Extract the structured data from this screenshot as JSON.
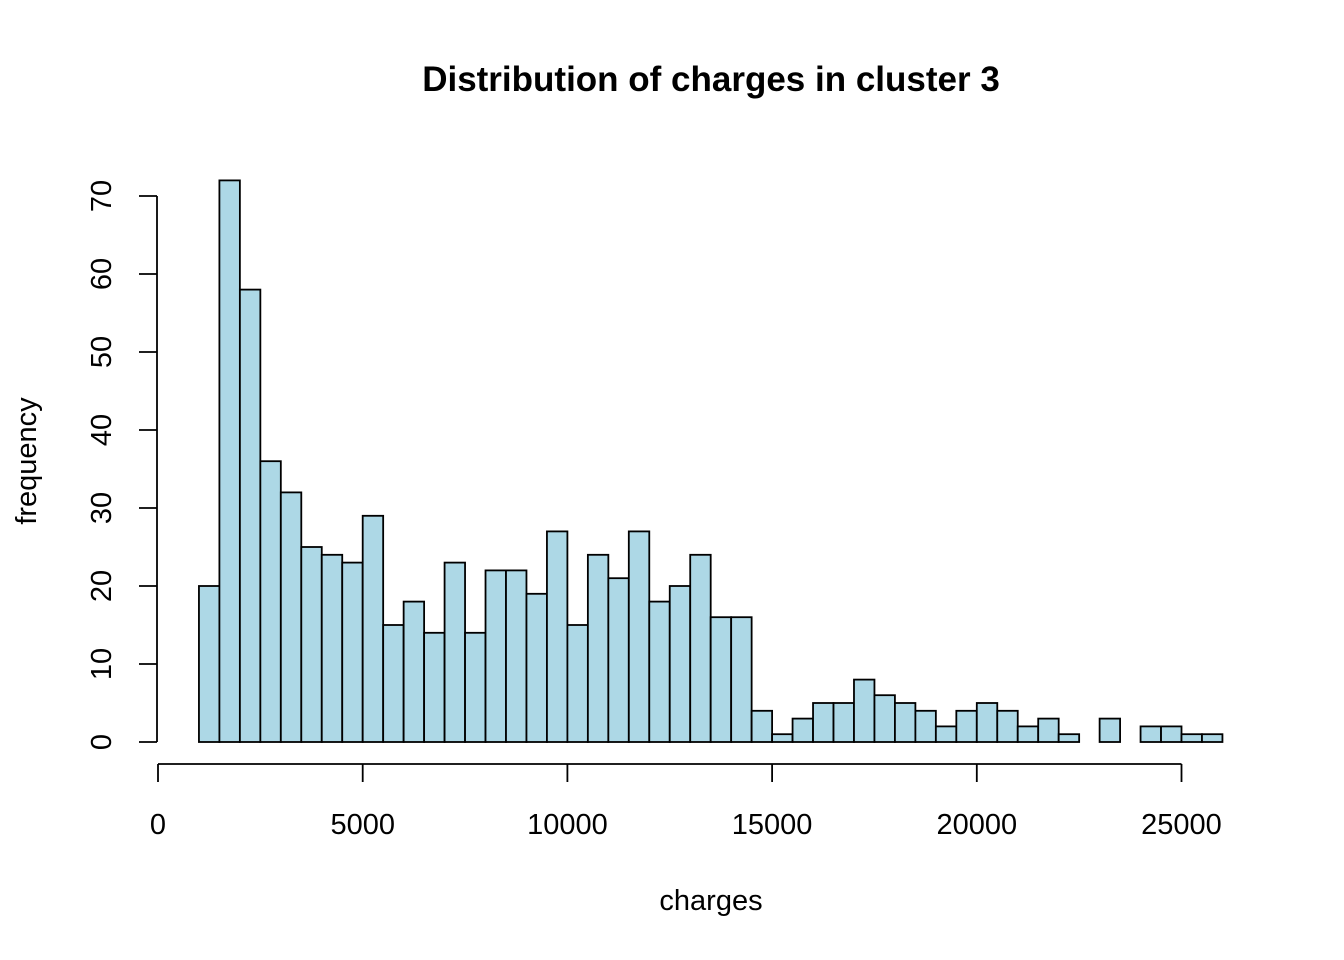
{
  "chart_data": {
    "type": "bar",
    "subtype": "histogram",
    "title": "Distribution of charges in cluster 3",
    "xlabel": "charges",
    "ylabel": "frequency",
    "bin_start": 1000,
    "bin_width": 500,
    "values": [
      20,
      72,
      58,
      36,
      32,
      25,
      24,
      23,
      29,
      15,
      18,
      14,
      23,
      14,
      22,
      22,
      19,
      27,
      15,
      24,
      21,
      27,
      18,
      20,
      24,
      16,
      16,
      4,
      1,
      3,
      5,
      5,
      8,
      6,
      5,
      4,
      2,
      4,
      5,
      4,
      2,
      3,
      1,
      0,
      3,
      0,
      2,
      2,
      1,
      1
    ],
    "xlim": [
      0,
      25000
    ],
    "ylim": [
      0,
      70
    ],
    "xticks": [
      0,
      5000,
      10000,
      15000,
      20000,
      25000
    ],
    "xtick_labels": [
      "0",
      "5000",
      "10000",
      "15000",
      "20000",
      "25000"
    ],
    "yticks": [
      0,
      10,
      20,
      30,
      40,
      50,
      60,
      70
    ],
    "ytick_labels": [
      "0",
      "10",
      "20",
      "30",
      "40",
      "50",
      "60",
      "70"
    ],
    "bar_color": "#add8e6",
    "edge_color": "#000000",
    "grid": false
  }
}
